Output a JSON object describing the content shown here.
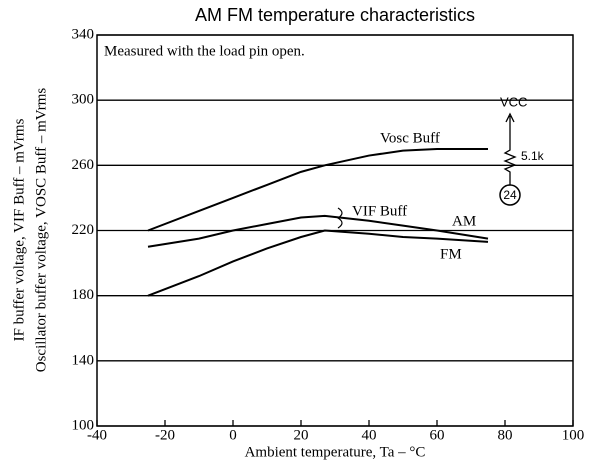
{
  "chart_data": {
    "type": "line",
    "title": "AM FM temperature characteristics",
    "x_label": "Ambient temperature, Ta – °C",
    "y_label": [
      "IF buffer voltage, VIF Buff – mVrms",
      "Oscillator buffer voltage, VOSC Buff – mVrms"
    ],
    "annotations": [
      "Measured with the load pin open.",
      "VIF Buff",
      "VCC",
      "5.1k",
      "24"
    ],
    "x": [
      -25,
      -10,
      0,
      10,
      20,
      27,
      40,
      50,
      60,
      75
    ],
    "series": [
      {
        "name": "Vosc Buff",
        "color": "#000000",
        "values": [
          220,
          232,
          240,
          248,
          256,
          260,
          266,
          269,
          270,
          270
        ]
      },
      {
        "name": "AM",
        "color": "#000000",
        "values": [
          210,
          215,
          220,
          224,
          228,
          229,
          226,
          223,
          220,
          215
        ]
      },
      {
        "name": "FM",
        "color": "#000000",
        "values": [
          180,
          192,
          201,
          209,
          216,
          220,
          218,
          216,
          215,
          213
        ]
      }
    ],
    "xlim": [
      -40,
      100
    ],
    "xticks": [
      -40,
      -20,
      0,
      20,
      40,
      60,
      80,
      100
    ],
    "ylim": [
      100,
      340
    ],
    "yticks": [
      100,
      140,
      180,
      220,
      260,
      300,
      340
    ],
    "grid": true
  }
}
